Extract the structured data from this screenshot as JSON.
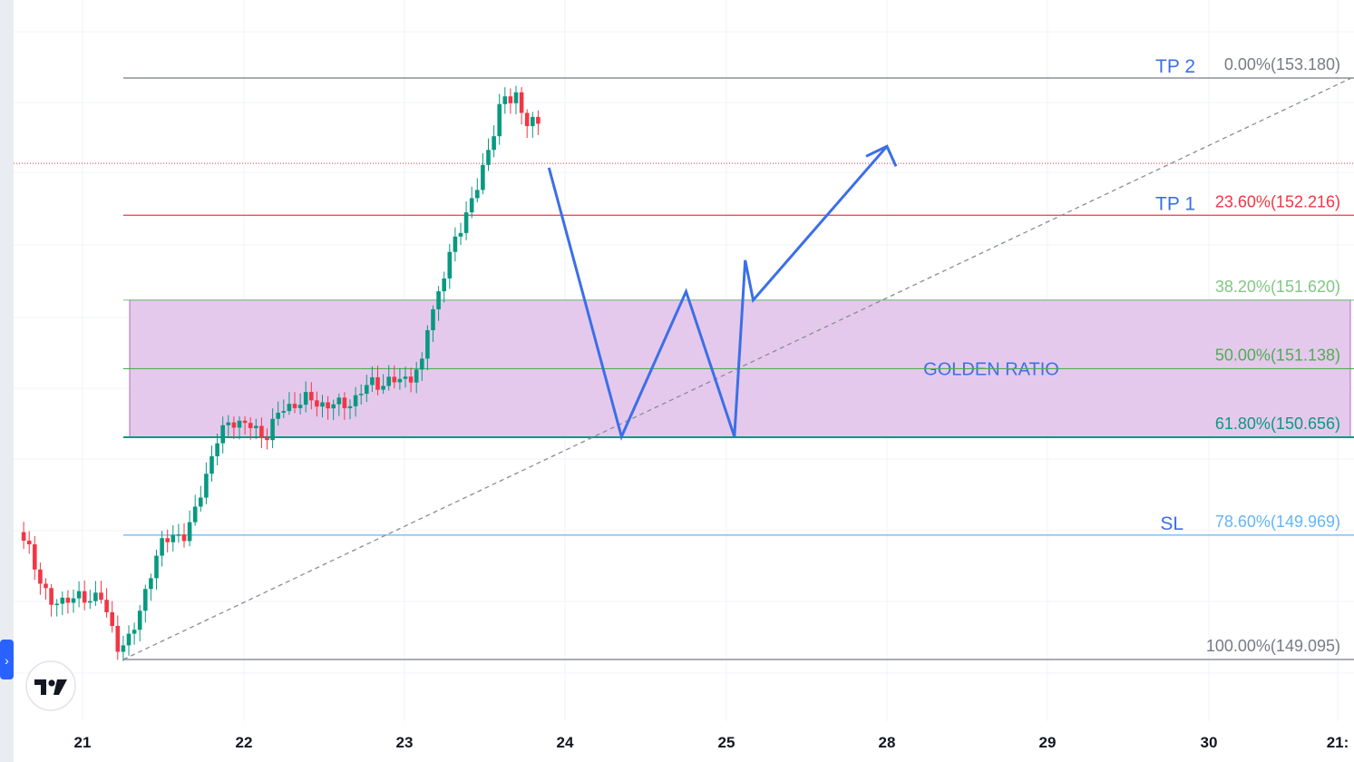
{
  "chart_data": {
    "type": "candlestick",
    "x_ticks": [
      "21",
      "22",
      "23",
      "24",
      "25",
      "28",
      "29",
      "30",
      "21:"
    ],
    "y_range": [
      149.095,
      153.18
    ],
    "fib_levels": [
      {
        "ratio": "0.00%",
        "price": "153.180",
        "label": "0.00%(153.180)",
        "value": 153.18,
        "color": "#787b86"
      },
      {
        "ratio": "23.60%",
        "price": "152.216",
        "label": "23.60%(152.216)",
        "value": 152.216,
        "color": "#f23645"
      },
      {
        "ratio": "38.20%",
        "price": "151.620",
        "label": "38.20%(151.620)",
        "value": 151.62,
        "color": "#81c784"
      },
      {
        "ratio": "50.00%",
        "price": "151.138",
        "label": "50.00%(151.138)",
        "value": 151.138,
        "color": "#4caf50"
      },
      {
        "ratio": "61.80%",
        "price": "150.656",
        "label": "61.80%(150.656)",
        "value": 150.656,
        "color": "#089981"
      },
      {
        "ratio": "78.60%",
        "price": "149.969",
        "label": "78.60%(149.969)",
        "value": 149.969,
        "color": "#64b5f6"
      },
      {
        "ratio": "100.00%",
        "price": "149.095",
        "label": "100.00%(149.095)",
        "value": 149.095,
        "color": "#787b86"
      }
    ],
    "tags": [
      {
        "text": "TP 2",
        "level": 153.18
      },
      {
        "text": "TP 1",
        "level": 152.216
      },
      {
        "text": "SL",
        "level": 149.969
      }
    ],
    "zone": {
      "label": "GOLDEN RATIO",
      "from": 151.62,
      "to": 150.656,
      "fill": "#e5c9ec",
      "border": "#b06cc0"
    },
    "current_price": 152.58,
    "projection_path": [
      {
        "day": "23.9",
        "price": 152.55
      },
      {
        "day": "24.35",
        "price": 150.66
      },
      {
        "day": "24.75",
        "price": 151.68
      },
      {
        "day": "25.15",
        "price": 150.66
      },
      {
        "day": "25.35",
        "price": 151.9
      },
      {
        "day": "25.5",
        "price": 151.62
      },
      {
        "day": "28.0",
        "price": 152.7
      }
    ],
    "colors": {
      "up": "#089981",
      "down": "#f23645",
      "projection": "#3b6fe8",
      "trend": "#8a8d95"
    }
  },
  "logo": {
    "alt": "TradingView"
  }
}
